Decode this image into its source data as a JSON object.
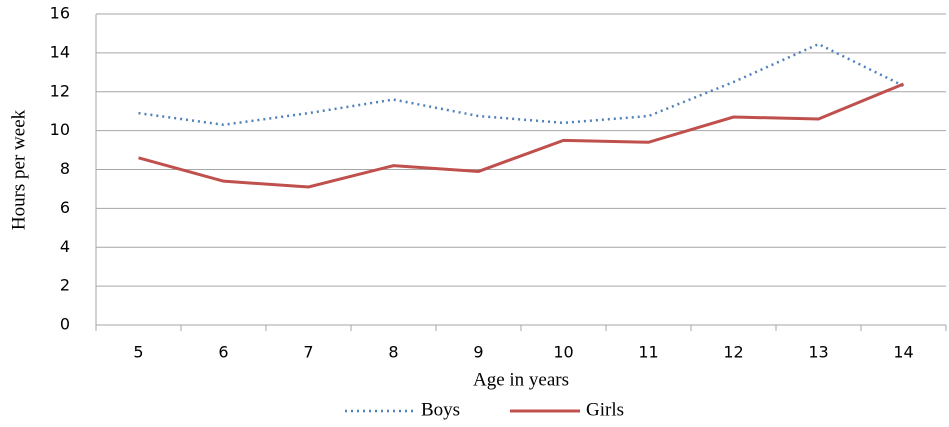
{
  "chart_data": {
    "type": "line",
    "x_label": "Age in years",
    "y_label": "Hours per week",
    "categories": [
      "5",
      "6",
      "7",
      "8",
      "9",
      "10",
      "11",
      "12",
      "13",
      "14"
    ],
    "series": [
      {
        "name": "Boys",
        "color": "#4f81bd",
        "style": "dotted",
        "values": [
          10.9,
          10.3,
          10.9,
          11.6,
          10.75,
          10.4,
          10.75,
          12.5,
          14.45,
          12.3
        ]
      },
      {
        "name": "Girls",
        "color": "#c0504d",
        "style": "solid",
        "values": [
          8.6,
          7.4,
          7.1,
          8.2,
          7.9,
          9.5,
          9.4,
          10.7,
          10.6,
          12.4
        ]
      }
    ],
    "ylim": [
      0,
      16
    ],
    "yticks": [
      0,
      2,
      4,
      6,
      8,
      10,
      12,
      14,
      16
    ],
    "grid": true,
    "legend": "bottom"
  }
}
